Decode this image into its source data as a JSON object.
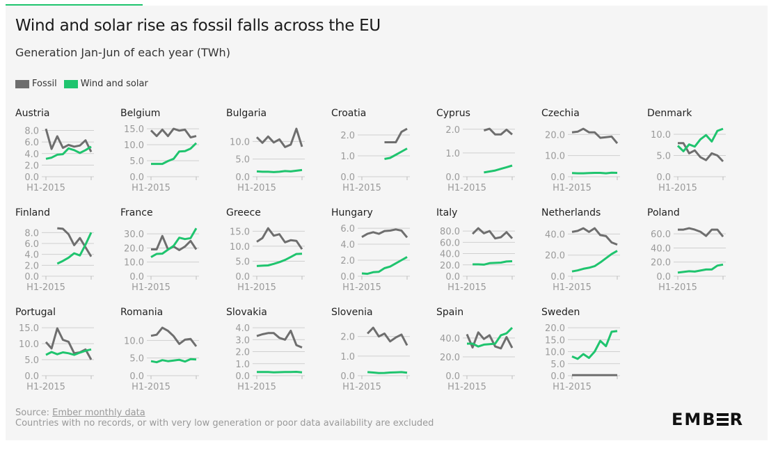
{
  "title": "Wind and solar rise as fossil falls across the EU",
  "subtitle": "Generation Jan-Jun of each year (TWh)",
  "legend": [
    {
      "label": "Fossil",
      "color": "#6e6e6e"
    },
    {
      "label": "Wind and solar",
      "color": "#1fc46e"
    }
  ],
  "footer": {
    "source_prefix": "Source: ",
    "source_link": "Ember monthly data",
    "note": "Countries with no records, or with very low generation or poor data availability are excluded"
  },
  "logo": "EMBER",
  "chart_data": {
    "type": "line",
    "x_first_label": "H1-2015",
    "series_names": [
      "Fossil",
      "Wind and solar"
    ],
    "colors": {
      "fossil": "#6e6e6e",
      "wind_solar": "#1fc46e"
    },
    "grid": true,
    "legend_position": "top-left",
    "panels": [
      {
        "country": "Austria",
        "ticks": [
          "0.0",
          "2.0",
          "4.0",
          "6.0",
          "8.0"
        ],
        "fossil": [
          8.3,
          4.8,
          7.0,
          5.0,
          5.5,
          5.2,
          5.4,
          6.3,
          4.3
        ],
        "wind_solar": [
          3.1,
          3.3,
          3.8,
          3.9,
          4.9,
          4.6,
          4.1,
          4.6,
          5.2
        ]
      },
      {
        "country": "Belgium",
        "ticks": [
          "0.0",
          "5.0",
          "10.0",
          "15.0"
        ],
        "fossil": [
          14.5,
          12.7,
          14.7,
          12.7,
          15.0,
          14.4,
          14.7,
          12.3,
          12.7
        ],
        "wind_solar": [
          4.0,
          4.0,
          4.0,
          4.9,
          5.6,
          7.9,
          8.0,
          8.8,
          10.5
        ]
      },
      {
        "country": "Bulgaria",
        "ticks": [
          "0.0",
          "5.0",
          "10.0"
        ],
        "fossil": [
          11.2,
          9.6,
          11.4,
          9.7,
          10.6,
          8.4,
          9.1,
          13.6,
          8.5
        ],
        "wind_solar": [
          1.5,
          1.4,
          1.4,
          1.3,
          1.4,
          1.6,
          1.5,
          1.7,
          1.9
        ]
      },
      {
        "country": "Croatia",
        "ticks": [
          "0.0",
          "1.0",
          "2.0"
        ],
        "fossil": [
          null,
          null,
          null,
          null,
          1.65,
          1.65,
          1.65,
          2.15,
          2.3
        ],
        "wind_solar": [
          null,
          null,
          null,
          null,
          0.85,
          0.9,
          1.05,
          1.2,
          1.35
        ]
      },
      {
        "country": "Cyprus",
        "ticks": [
          "0.0",
          "1.0",
          "2.0"
        ],
        "fossil": [
          null,
          null,
          null,
          1.95,
          2.02,
          1.78,
          1.78,
          1.98,
          1.78
        ],
        "wind_solar": [
          null,
          null,
          null,
          0.18,
          0.22,
          0.26,
          0.33,
          0.4,
          0.47
        ]
      },
      {
        "country": "Czechia",
        "ticks": [
          "0.0",
          "10.0",
          "20.0"
        ],
        "fossil": [
          21.0,
          21.3,
          22.7,
          21.0,
          21.0,
          18.4,
          18.7,
          19.0,
          15.8
        ],
        "wind_solar": [
          1.7,
          1.6,
          1.6,
          1.7,
          1.8,
          1.8,
          1.6,
          1.9,
          1.8
        ]
      },
      {
        "country": "Denmark",
        "ticks": [
          "0.0",
          "5.0",
          "10.0"
        ],
        "fossil": [
          7.9,
          7.9,
          5.5,
          6.2,
          4.6,
          3.9,
          5.5,
          5.0,
          3.6
        ],
        "wind_solar": [
          7.3,
          6.0,
          7.6,
          7.1,
          8.8,
          9.8,
          8.3,
          10.8,
          11.3
        ]
      },
      {
        "country": "Finland",
        "ticks": [
          "0.0",
          "2.0",
          "4.0",
          "6.0",
          "8.0"
        ],
        "fossil": [
          null,
          null,
          8.8,
          8.7,
          7.7,
          5.7,
          7.0,
          5.3,
          3.6
        ],
        "wind_solar": [
          null,
          null,
          2.3,
          2.8,
          3.4,
          4.2,
          3.8,
          5.8,
          8.0
        ]
      },
      {
        "country": "France",
        "ticks": [
          "0.0",
          "10.0",
          "20.0",
          "30.0"
        ],
        "fossil": [
          19,
          19,
          28.5,
          19,
          21,
          18.5,
          21,
          25,
          19
        ],
        "wind_solar": [
          13.5,
          15.8,
          16,
          18.8,
          21.5,
          27.3,
          26.3,
          27,
          34
        ]
      },
      {
        "country": "Greece",
        "ticks": [
          "0.0",
          "5.0",
          "10.0",
          "15.0"
        ],
        "fossil": [
          11.5,
          12.7,
          16,
          13.5,
          14,
          11.3,
          12,
          11.8,
          9
        ],
        "wind_solar": [
          3.4,
          3.5,
          3.6,
          4.1,
          4.7,
          5.4,
          6.4,
          7.4,
          7.5
        ]
      },
      {
        "country": "Hungary",
        "ticks": [
          "0.0",
          "2.0",
          "4.0",
          "6.0"
        ],
        "fossil": [
          4.9,
          5.3,
          5.5,
          5.3,
          5.65,
          5.7,
          5.85,
          5.7,
          4.85
        ],
        "wind_solar": [
          0.35,
          0.3,
          0.5,
          0.55,
          1.0,
          1.2,
          1.6,
          2.0,
          2.4
        ]
      },
      {
        "country": "Italy",
        "ticks": [
          "0.0",
          "20.0",
          "40.0",
          "60.0",
          "80.0"
        ],
        "fossil": [
          null,
          75,
          85,
          76,
          80,
          67,
          69,
          78,
          67
        ],
        "wind_solar": [
          null,
          21,
          21,
          20.5,
          23,
          23.5,
          24,
          26,
          26.5
        ]
      },
      {
        "country": "Netherlands",
        "ticks": [
          "0.0",
          "20.0",
          "40.0"
        ],
        "fossil": [
          42,
          43,
          45.5,
          42,
          45.5,
          39,
          38,
          32,
          30
        ],
        "wind_solar": [
          4.5,
          5.5,
          7,
          8,
          9.5,
          13,
          17,
          21,
          24
        ]
      },
      {
        "country": "Poland",
        "ticks": [
          "0.0",
          "20.0",
          "40.0",
          "60.0"
        ],
        "fossil": [
          66,
          66,
          68,
          66,
          63,
          57,
          66,
          66,
          56
        ],
        "wind_solar": [
          5,
          6,
          7,
          6.5,
          8,
          9.5,
          9.5,
          15,
          16.5
        ]
      },
      {
        "country": "Portugal",
        "ticks": [
          "0.0",
          "5.0",
          "10.0",
          "15.0"
        ],
        "fossil": [
          10.5,
          8.5,
          14.8,
          11.2,
          10.6,
          7,
          7.3,
          8.2,
          5
        ],
        "wind_solar": [
          6.5,
          7.4,
          6.7,
          7.3,
          7,
          6.5,
          7.2,
          7.8,
          8.2
        ]
      },
      {
        "country": "Romania",
        "ticks": [
          "0.0",
          "5.0",
          "10.0"
        ],
        "fossil": [
          11.3,
          11.6,
          13.6,
          12.7,
          11.2,
          9,
          10.2,
          10.4,
          8.3
        ],
        "wind_solar": [
          4.1,
          3.8,
          4.4,
          4.1,
          4.3,
          4.5,
          4.0,
          4.7,
          4.6
        ]
      },
      {
        "country": "Slovakia",
        "ticks": [
          "0.0",
          "1.0",
          "2.0",
          "3.0",
          "4.0"
        ],
        "fossil": [
          3.3,
          3.45,
          3.55,
          3.55,
          3.15,
          3.0,
          3.75,
          2.55,
          2.35
        ],
        "wind_solar": [
          0.3,
          0.3,
          0.3,
          0.28,
          0.29,
          0.3,
          0.3,
          0.32,
          0.28
        ]
      },
      {
        "country": "Slovenia",
        "ticks": [
          "0.0",
          "1.0",
          "2.0"
        ],
        "fossil": [
          null,
          2.15,
          2.45,
          2.0,
          2.15,
          1.75,
          1.95,
          2.1,
          1.55
        ],
        "wind_solar": [
          null,
          0.18,
          0.16,
          0.13,
          0.14,
          0.16,
          0.17,
          0.18,
          0.15
        ]
      },
      {
        "country": "Spain",
        "ticks": [
          "0.0",
          "20.0",
          "40.0"
        ],
        "fossil": [
          44,
          30,
          46,
          39,
          43,
          31,
          29,
          41,
          29.5
        ],
        "wind_solar": [
          34,
          34,
          31,
          33,
          33.5,
          34,
          43,
          45,
          51
        ]
      },
      {
        "country": "Sweden",
        "ticks": [
          "0.0",
          "5.0",
          "10.0",
          "15.0",
          "20.0"
        ],
        "fossil": [
          0.2,
          0.2,
          0.2,
          0.2,
          0.2,
          0.2,
          0.2,
          0.2,
          0.2
        ],
        "wind_solar": [
          8,
          7,
          9,
          7.4,
          10,
          14.5,
          12.3,
          18.3,
          18.6
        ]
      }
    ]
  }
}
